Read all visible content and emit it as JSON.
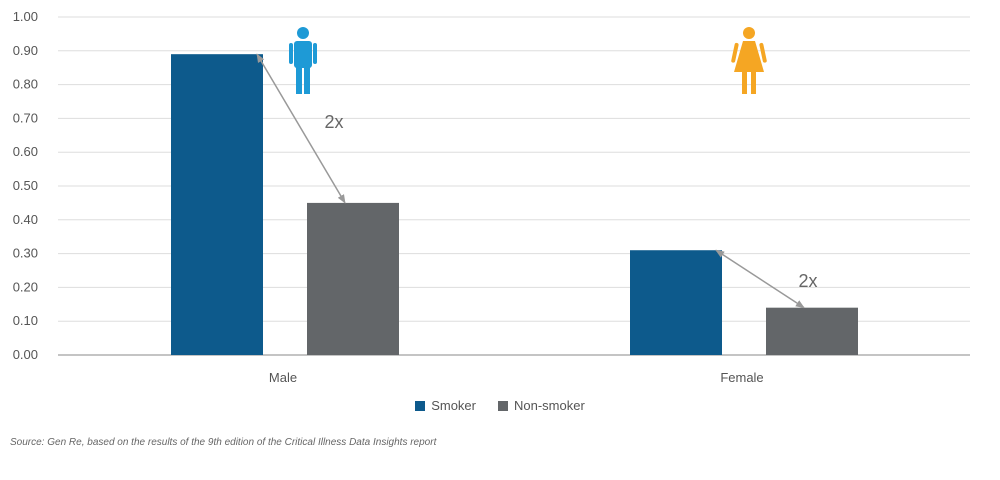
{
  "chart_data": {
    "type": "bar",
    "categories": [
      "Male",
      "Female"
    ],
    "series": [
      {
        "name": "Smoker",
        "values": [
          0.89,
          0.31
        ],
        "color": "#0d5a8c"
      },
      {
        "name": "Non-smoker",
        "values": [
          0.45,
          0.14
        ],
        "color": "#636669"
      }
    ],
    "ylim": [
      0,
      1.0
    ],
    "yticks": [
      "0.00",
      "0.10",
      "0.20",
      "0.30",
      "0.40",
      "0.50",
      "0.60",
      "0.70",
      "0.80",
      "0.90",
      "1.00"
    ],
    "grid": true,
    "legend_position": "bottom",
    "annotations": [
      "2x",
      "2x"
    ],
    "icons": [
      {
        "name": "male-person-icon",
        "color": "#1e9ad6"
      },
      {
        "name": "female-person-icon",
        "color": "#f5a623"
      }
    ]
  },
  "source": "Source: Gen Re, based on the results of the 9th edition of the Critical Illness Data Insights report"
}
